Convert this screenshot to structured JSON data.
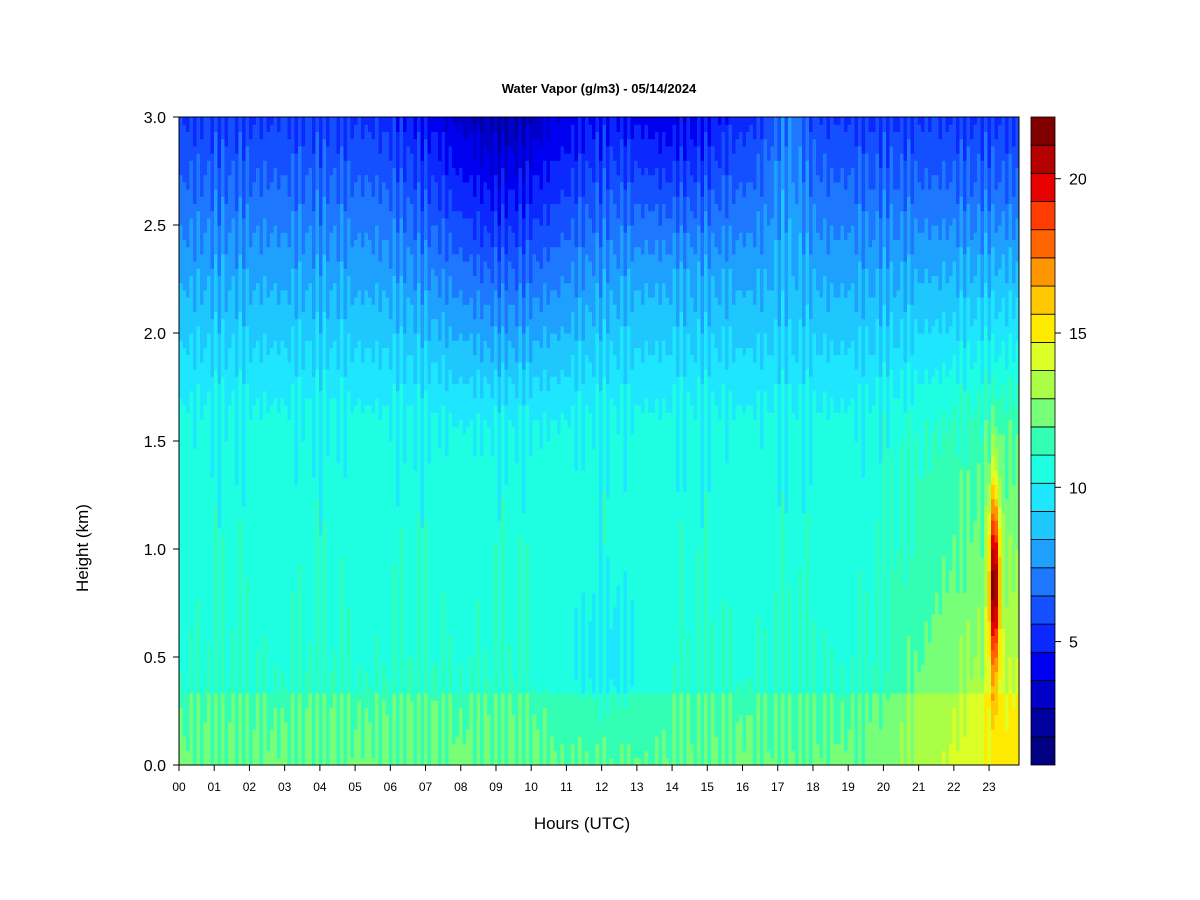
{
  "chart_data": {
    "type": "heatmap",
    "title": "Water Vapor (g/m3) - 05/14/2024",
    "xlabel": "Hours (UTC)",
    "ylabel": "Height (km)",
    "xlim": [
      0,
      23.85
    ],
    "ylim": [
      0,
      3.0
    ],
    "x_tick_labels": [
      "00",
      "01",
      "02",
      "03",
      "04",
      "05",
      "06",
      "07",
      "08",
      "09",
      "10",
      "11",
      "12",
      "13",
      "14",
      "15",
      "16",
      "17",
      "18",
      "19",
      "20",
      "21",
      "22",
      "23"
    ],
    "y_tick_labels": [
      "0.0",
      "0.5",
      "1.0",
      "1.5",
      "2.0",
      "2.5",
      "3.0"
    ],
    "y_ticks": [
      0.0,
      0.5,
      1.0,
      1.5,
      2.0,
      2.5,
      3.0
    ],
    "colorbar": {
      "levels": [
        1,
        2,
        3,
        4,
        5,
        6,
        7,
        8,
        9,
        10,
        11,
        12,
        13,
        14,
        15,
        16,
        17,
        18,
        19,
        20,
        21,
        22
      ],
      "tick_labels": [
        "5",
        "10",
        "15",
        "20"
      ],
      "tick_values": [
        5,
        10,
        15,
        20
      ],
      "colors": [
        "#000080",
        "#00009d",
        "#0000c8",
        "#0000f0",
        "#0b28ff",
        "#1450ff",
        "#1e78ff",
        "#1ea0ff",
        "#1ec8ff",
        "#1ee6ff",
        "#1effe1",
        "#32ffb4",
        "#78ff78",
        "#aaff46",
        "#dcff28",
        "#ffeb00",
        "#ffc800",
        "#ff9600",
        "#ff6400",
        "#ff3c00",
        "#e60000",
        "#b40000",
        "#800000"
      ]
    },
    "description_values": {
      "water_vapor_top_km": 3.0,
      "values_g_m3": {
        "surface_layer_typical": 11,
        "mid_layer_1km_typical": 10,
        "top_3km_typical": 4,
        "minimum_near_09UTC_3km": 2,
        "maximum_near_23UTC_1km": 20
      }
    }
  }
}
